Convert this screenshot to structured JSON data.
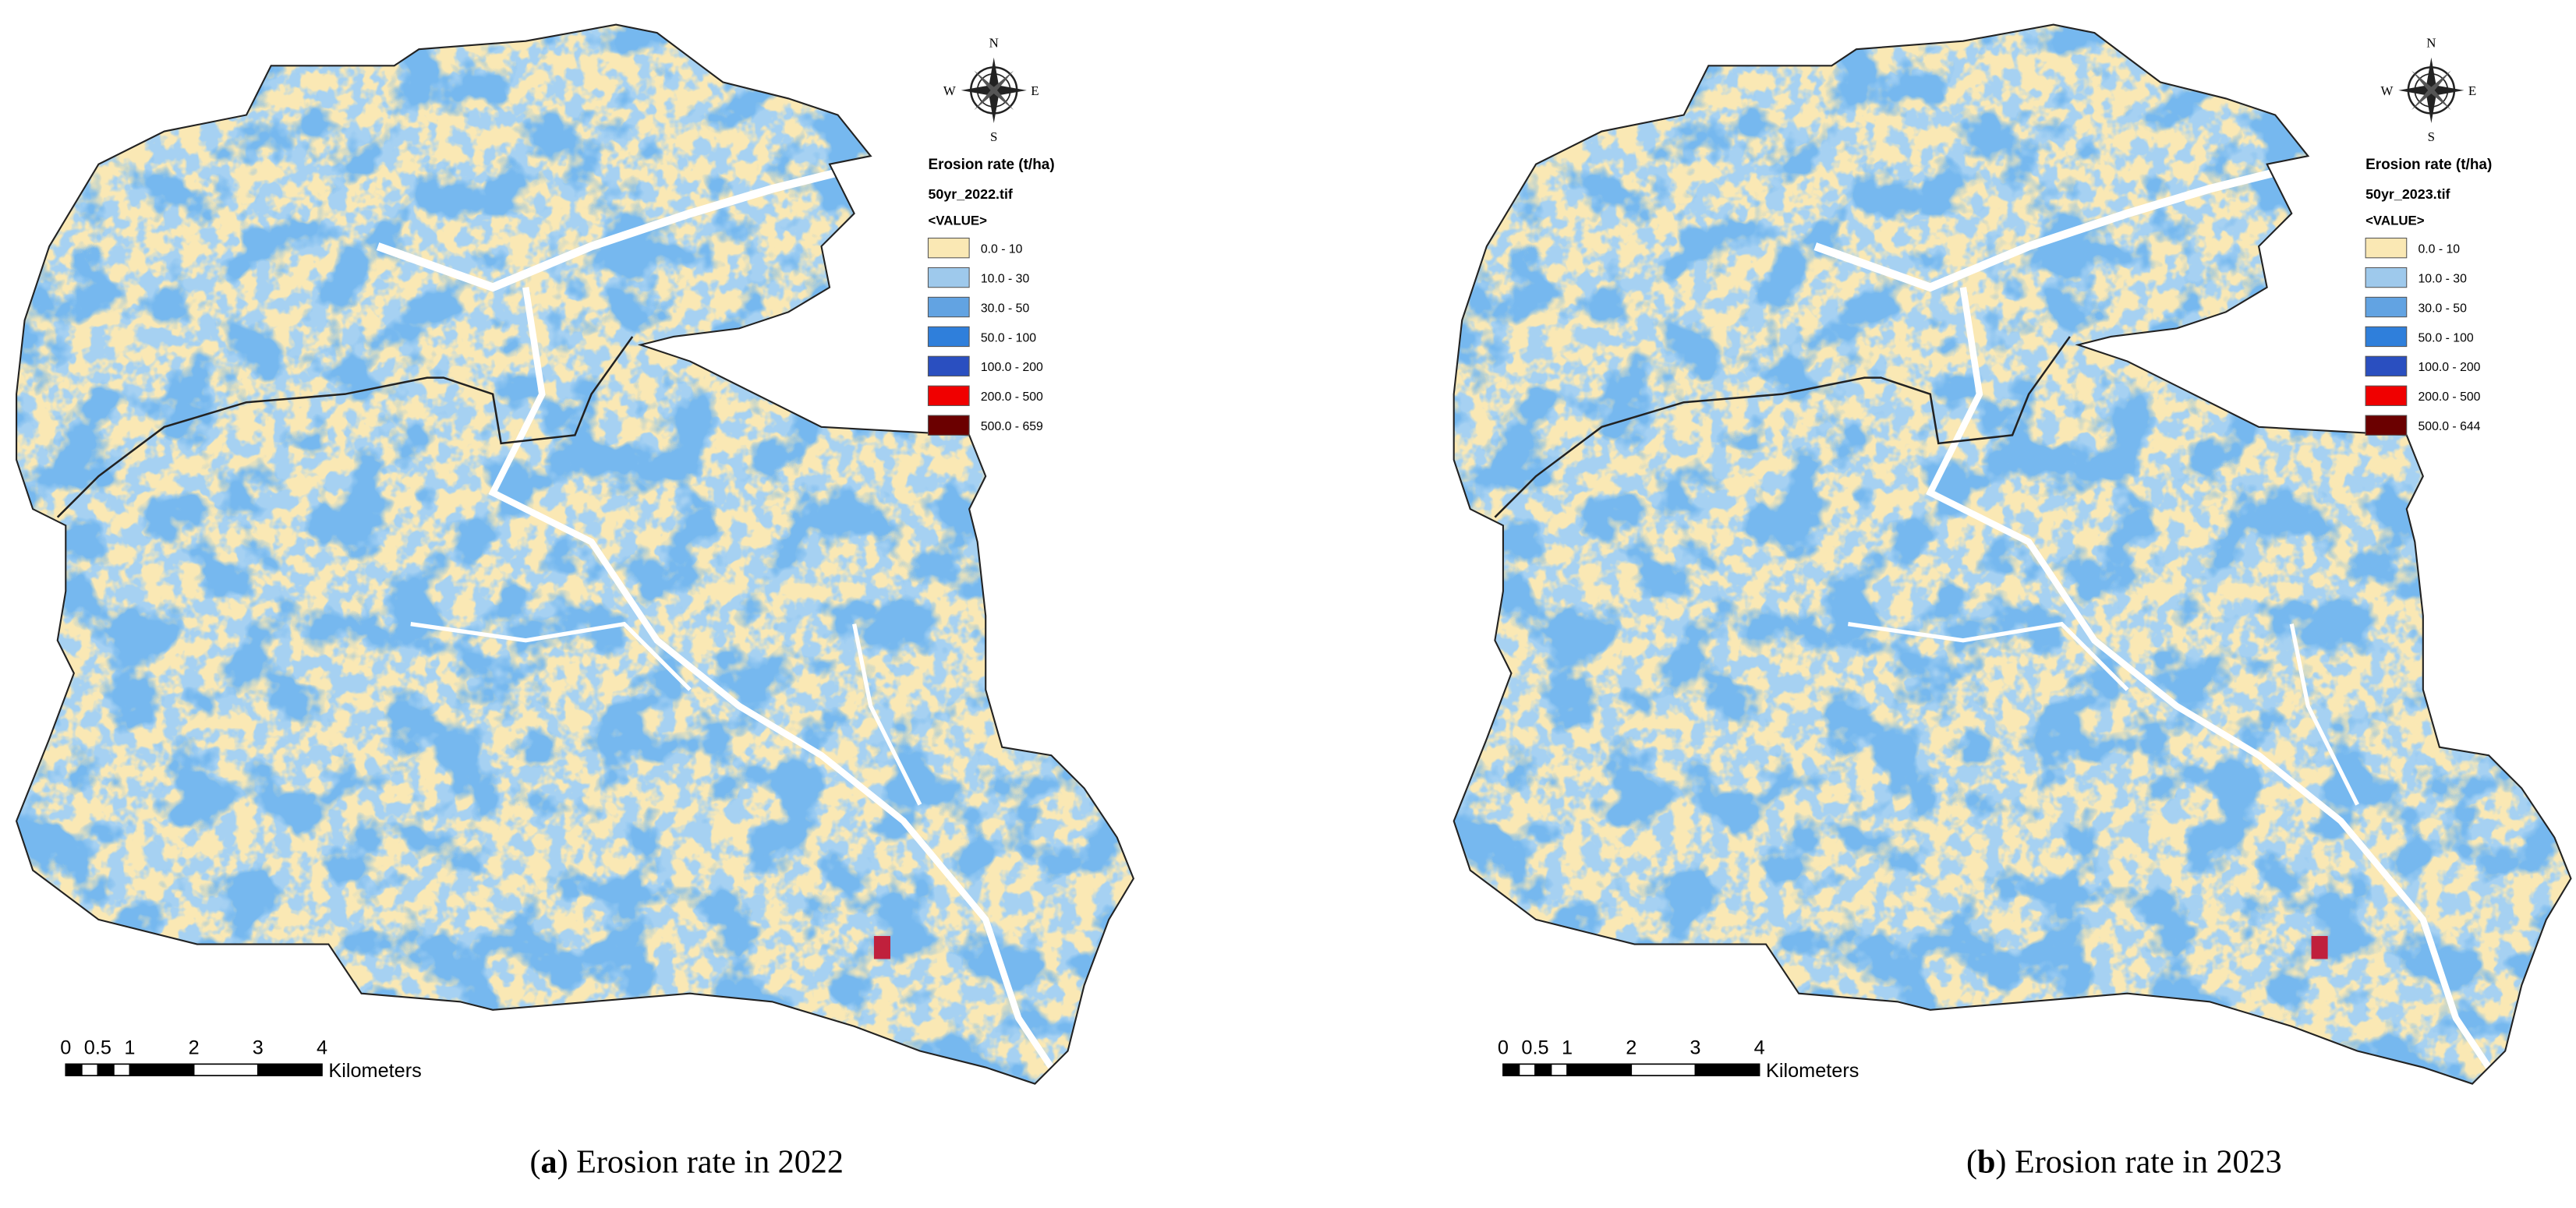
{
  "panels": [
    {
      "legend": {
        "title": "Erosion rate (t/ha)",
        "file": "50yr_2022.tif",
        "field": "<VALUE>",
        "classes": [
          {
            "label": "0.0 - 10",
            "color": "#fae8b4"
          },
          {
            "label": "10.0 - 30",
            "color": "#9ec9ec"
          },
          {
            "label": "30.0 - 50",
            "color": "#62a3e2"
          },
          {
            "label": "50.0 - 100",
            "color": "#2f7fdb"
          },
          {
            "label": "100.0 - 200",
            "color": "#2a4fc0"
          },
          {
            "label": "200.0 - 500",
            "color": "#f00000"
          },
          {
            "label": "500.0 - 659",
            "color": "#6b0000"
          }
        ]
      },
      "compass": {
        "n": "N",
        "s": "S",
        "e": "E",
        "w": "W"
      },
      "scale_bar": {
        "ticks": [
          0,
          0.5,
          1,
          2,
          3,
          4
        ],
        "unit": "Kilometers"
      },
      "caption": {
        "prefix": "(",
        "label": "a",
        "suffix": ") Erosion rate in 2022"
      }
    },
    {
      "legend": {
        "title": "Erosion rate (t/ha)",
        "file": "50yr_2023.tif",
        "field": "<VALUE>",
        "classes": [
          {
            "label": "0.0 - 10",
            "color": "#fae8b4"
          },
          {
            "label": "10.0 - 30",
            "color": "#9ec9ec"
          },
          {
            "label": "30.0 - 50",
            "color": "#62a3e2"
          },
          {
            "label": "50.0 - 100",
            "color": "#2f7fdb"
          },
          {
            "label": "100.0 - 200",
            "color": "#2a4fc0"
          },
          {
            "label": "200.0 - 500",
            "color": "#f00000"
          },
          {
            "label": "500.0 - 644",
            "color": "#6b0000"
          }
        ]
      },
      "compass": {
        "n": "N",
        "s": "S",
        "e": "E",
        "w": "W"
      },
      "scale_bar": {
        "ticks": [
          0,
          0.5,
          1,
          2,
          3,
          4
        ],
        "unit": "Kilometers"
      },
      "caption": {
        "prefix": "(",
        "label": "b",
        "suffix": ") Erosion rate in 2023"
      }
    }
  ]
}
